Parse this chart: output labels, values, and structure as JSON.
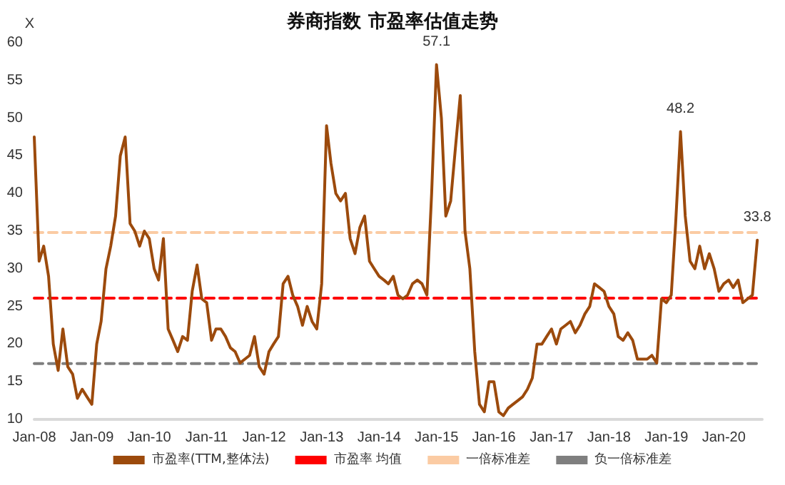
{
  "chart_data": {
    "type": "line",
    "title": "券商指数 市盈率估值走势",
    "ylabel": "X",
    "x": [
      "2008-01",
      "2008-02",
      "2008-03",
      "2008-04",
      "2008-05",
      "2008-06",
      "2008-07",
      "2008-08",
      "2008-09",
      "2008-10",
      "2008-11",
      "2008-12",
      "2009-01",
      "2009-02",
      "2009-03",
      "2009-04",
      "2009-05",
      "2009-06",
      "2009-07",
      "2009-08",
      "2009-09",
      "2009-10",
      "2009-11",
      "2009-12",
      "2010-01",
      "2010-02",
      "2010-03",
      "2010-04",
      "2010-05",
      "2010-06",
      "2010-07",
      "2010-08",
      "2010-09",
      "2010-10",
      "2010-11",
      "2010-12",
      "2011-01",
      "2011-02",
      "2011-03",
      "2011-04",
      "2011-05",
      "2011-06",
      "2011-07",
      "2011-08",
      "2011-09",
      "2011-10",
      "2011-11",
      "2011-12",
      "2012-01",
      "2012-02",
      "2012-03",
      "2012-04",
      "2012-05",
      "2012-06",
      "2012-07",
      "2012-08",
      "2012-09",
      "2012-10",
      "2012-11",
      "2012-12",
      "2013-01",
      "2013-02",
      "2013-03",
      "2013-04",
      "2013-05",
      "2013-06",
      "2013-07",
      "2013-08",
      "2013-09",
      "2013-10",
      "2013-11",
      "2013-12",
      "2014-01",
      "2014-02",
      "2014-03",
      "2014-04",
      "2014-05",
      "2014-06",
      "2014-07",
      "2014-08",
      "2014-09",
      "2014-10",
      "2014-11",
      "2014-12",
      "2015-01",
      "2015-02",
      "2015-03",
      "2015-04",
      "2015-05",
      "2015-06",
      "2015-07",
      "2015-08",
      "2015-09",
      "2015-10",
      "2015-11",
      "2015-12",
      "2016-01",
      "2016-02",
      "2016-03",
      "2016-04",
      "2016-05",
      "2016-06",
      "2016-07",
      "2016-08",
      "2016-09",
      "2016-10",
      "2016-11",
      "2016-12",
      "2017-01",
      "2017-02",
      "2017-03",
      "2017-04",
      "2017-05",
      "2017-06",
      "2017-07",
      "2017-08",
      "2017-09",
      "2017-10",
      "2017-11",
      "2017-12",
      "2018-01",
      "2018-02",
      "2018-03",
      "2018-04",
      "2018-05",
      "2018-06",
      "2018-07",
      "2018-08",
      "2018-09",
      "2018-10",
      "2018-11",
      "2018-12",
      "2019-01",
      "2019-02",
      "2019-03",
      "2019-04",
      "2019-05",
      "2019-06",
      "2019-07",
      "2019-08",
      "2019-09",
      "2019-10",
      "2019-11",
      "2019-12",
      "2020-01",
      "2020-02",
      "2020-03",
      "2020-04",
      "2020-05",
      "2020-06",
      "2020-07",
      "2020-08"
    ],
    "series": [
      {
        "name": "市盈率(TTM,整体法)",
        "color": "#9c4a0c",
        "line_style": "solid",
        "values": [
          47.5,
          31,
          33,
          29,
          20,
          16.5,
          22,
          17,
          16,
          12.8,
          14,
          13,
          12,
          20,
          23,
          30,
          33,
          37,
          45,
          47.5,
          36,
          35,
          33,
          35,
          34,
          30,
          28.5,
          34,
          22,
          20.5,
          19,
          21,
          20.5,
          27,
          30.5,
          26,
          25.5,
          20.5,
          22,
          22,
          21,
          19.5,
          19,
          17.5,
          18,
          18.5,
          21,
          17,
          16,
          19,
          20,
          21,
          28,
          29,
          26.5,
          25,
          22.5,
          25,
          23,
          22,
          28,
          49,
          44,
          40,
          39,
          40,
          34,
          32,
          35.5,
          37,
          31,
          30,
          29,
          28.5,
          28,
          29,
          26.5,
          26,
          26.5,
          28,
          28.5,
          28,
          26.5,
          40,
          57.1,
          50,
          37,
          39,
          46,
          53,
          35,
          30,
          19,
          12,
          11,
          15,
          15,
          11,
          10.5,
          11.5,
          12,
          12.5,
          13,
          14,
          15.5,
          20,
          20,
          21,
          22,
          20,
          22,
          22.5,
          23,
          21.5,
          22.5,
          24,
          25,
          28,
          27.5,
          27,
          25,
          24,
          21,
          20.5,
          21.5,
          20.5,
          18,
          18,
          18,
          18.5,
          17.5,
          26,
          25.5,
          26.5,
          36,
          48.2,
          37,
          31,
          30,
          33,
          30,
          32,
          30,
          27,
          28,
          28.5,
          27.5,
          28.5,
          25.5,
          26,
          26.5,
          33.8
        ]
      },
      {
        "name": "市盈率 均值",
        "color": "#ff0000",
        "line_style": "dashed",
        "x": [
          "2008-01",
          "2020-08"
        ],
        "values": [
          26.1,
          26.1
        ]
      },
      {
        "name": "一倍标准差",
        "color": "#fbcba3",
        "line_style": "dashed",
        "x": [
          "2008-01",
          "2020-08"
        ],
        "values": [
          34.8,
          34.8
        ]
      },
      {
        "name": "负一倍标准差",
        "color": "#7f7f7f",
        "line_style": "dashed",
        "x": [
          "2008-01",
          "2020-08"
        ],
        "values": [
          17.4,
          17.4
        ]
      }
    ],
    "xlim": [
      "2008-01",
      "2020-09"
    ],
    "xticks": [
      {
        "value": "2008-01",
        "label": "Jan-08"
      },
      {
        "value": "2009-01",
        "label": "Jan-09"
      },
      {
        "value": "2010-01",
        "label": "Jan-10"
      },
      {
        "value": "2011-01",
        "label": "Jan-11"
      },
      {
        "value": "2012-01",
        "label": "Jan-12"
      },
      {
        "value": "2013-01",
        "label": "Jan-13"
      },
      {
        "value": "2014-01",
        "label": "Jan-14"
      },
      {
        "value": "2015-01",
        "label": "Jan-15"
      },
      {
        "value": "2016-01",
        "label": "Jan-16"
      },
      {
        "value": "2017-01",
        "label": "Jan-17"
      },
      {
        "value": "2018-01",
        "label": "Jan-18"
      },
      {
        "value": "2019-01",
        "label": "Jan-19"
      },
      {
        "value": "2020-01",
        "label": "Jan-20"
      }
    ],
    "ylim": [
      10,
      60
    ],
    "yticks": [
      10,
      15,
      20,
      25,
      30,
      35,
      40,
      45,
      50,
      55,
      60
    ],
    "annotations": [
      {
        "text": "57.1",
        "x": "2015-01",
        "y": 57.1
      },
      {
        "text": "48.2",
        "x": "2019-04",
        "y": 48.2
      },
      {
        "text": "33.8",
        "x": "2020-08",
        "y": 33.8
      }
    ],
    "legend": "bottom",
    "grid": false,
    "marker": "none"
  }
}
